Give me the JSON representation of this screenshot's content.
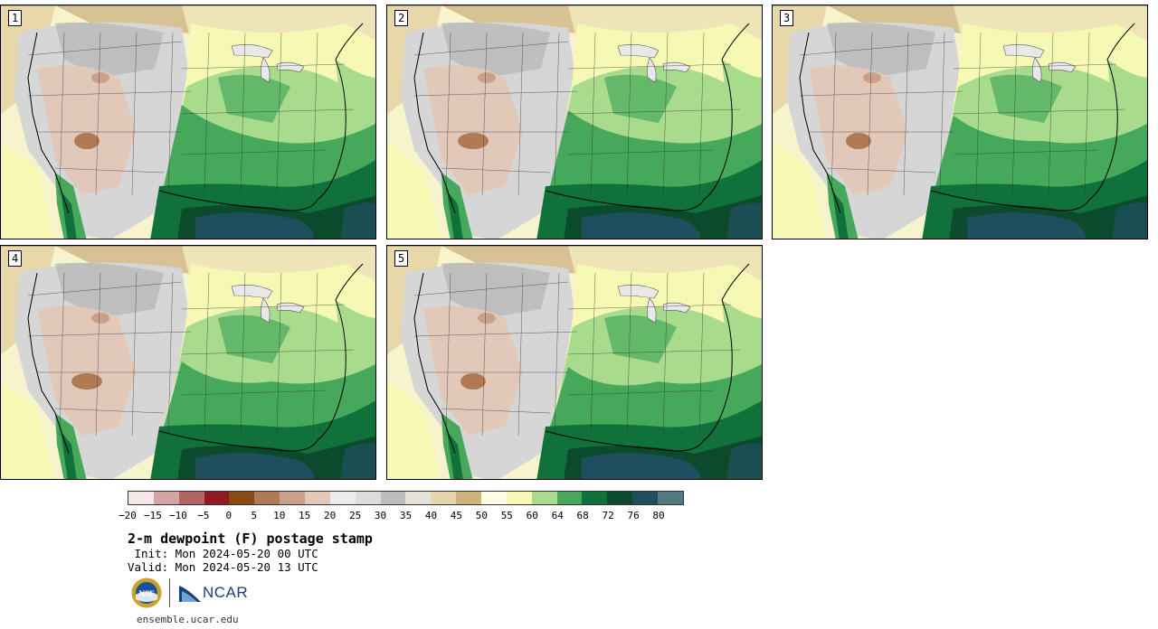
{
  "panels": [
    {
      "label": "1"
    },
    {
      "label": "2"
    },
    {
      "label": "3"
    },
    {
      "label": "4"
    },
    {
      "label": "5"
    }
  ],
  "colorbar": {
    "colors": [
      "#f6e8e8",
      "#d5a3a3",
      "#b36464",
      "#8f1a21",
      "#8a4a12",
      "#b07a55",
      "#c9a18a",
      "#e2c8b8",
      "#ececec",
      "#dcdcdc",
      "#bdbdbd",
      "#e4e2d6",
      "#e6d6ad",
      "#cdb47a",
      "#fdfde6",
      "#f6f9b4",
      "#a8dc8c",
      "#46a85a",
      "#10723a",
      "#0c4a2c",
      "#1f4f5e",
      "#527a80"
    ],
    "tick_labels": [
      "−20",
      "−15",
      "−10",
      "−5",
      "0",
      "5",
      "10",
      "15",
      "20",
      "25",
      "30",
      "35",
      "40",
      "45",
      "50",
      "55",
      "60",
      "64",
      "68",
      "72",
      "76",
      "80"
    ]
  },
  "title": "2-m dewpoint (F) postage stamp",
  "init_text": " Init: Mon 2024-05-20 00 UTC",
  "valid_text": "Valid: Mon 2024-05-20 13 UTC",
  "logos": {
    "nsf": "NSF",
    "ncar": "NCAR"
  },
  "site": "ensemble.ucar.edu"
}
